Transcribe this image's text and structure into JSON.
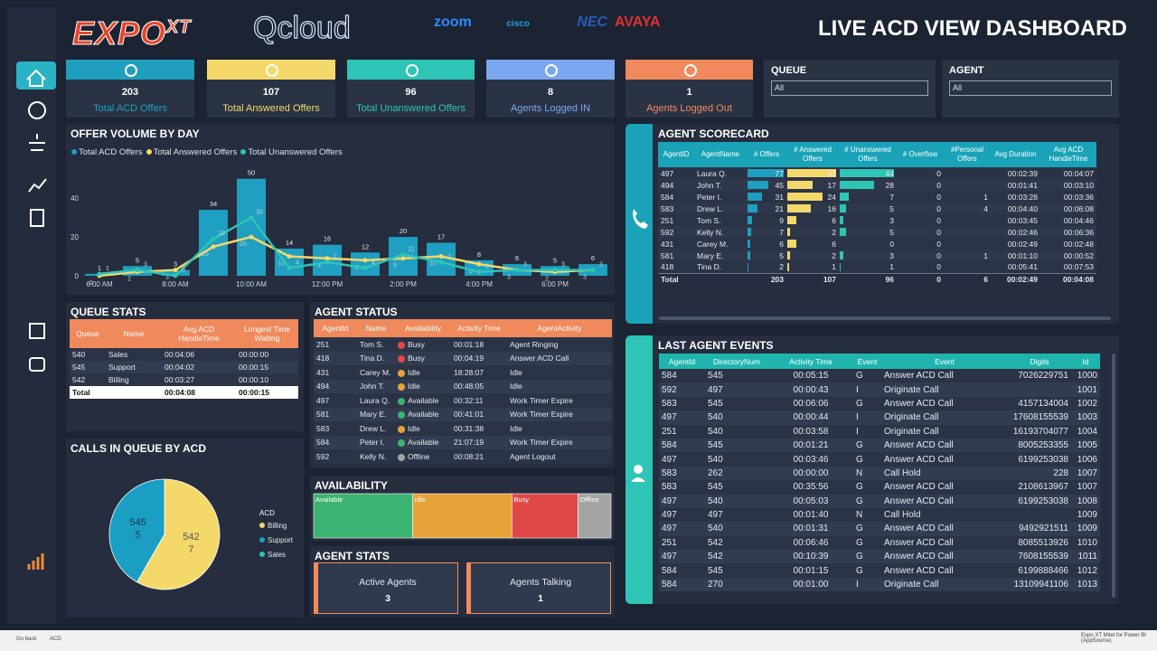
{
  "header": {
    "logo": "EXPO",
    "logo_sup": "XT",
    "brand": "Qcloud",
    "partners": [
      "zoom",
      "cisco",
      "NEC",
      "AVAYA"
    ],
    "title": "LIVE ACD VIEW DASHBOARD"
  },
  "kpis": [
    {
      "value": 203,
      "label": "Total ACD Offers",
      "color": "#1f9fbd"
    },
    {
      "value": 107,
      "label": "Total Answered Offers",
      "color": "#f5d86a"
    },
    {
      "value": 96,
      "label": "Total Unanswered Offers",
      "color": "#2ec4b6"
    },
    {
      "value": 8,
      "label": "Agents Logged IN",
      "color": "#7ba7f0"
    },
    {
      "value": 1,
      "label": "Agents Logged Out",
      "color": "#f08a5d"
    }
  ],
  "filters": [
    {
      "label": "QUEUE",
      "value": "All"
    },
    {
      "label": "AGENT",
      "value": "All"
    }
  ],
  "chart_data": [
    {
      "type": "bar",
      "title": "OFFER VOLUME BY DAY",
      "categories": [
        "6:00 AM",
        null,
        "8:00 AM",
        null,
        "10:00 AM",
        null,
        "12:00 PM",
        null,
        "2:00 PM",
        null,
        "4:00 PM",
        null,
        "6:00 PM",
        null
      ],
      "series": [
        {
          "name": "Total ACD Offers",
          "color": "#1f9fc1",
          "mark": "bar",
          "values": [
            1,
            5,
            3,
            34,
            50,
            14,
            16,
            12,
            20,
            17,
            8,
            6,
            5,
            6
          ]
        },
        {
          "name": "Total Answered Offers",
          "color": "#f5d86a",
          "mark": "line",
          "values": [
            0,
            2,
            3,
            15,
            20,
            10,
            9,
            8,
            9,
            10,
            6,
            3,
            2,
            3
          ]
        },
        {
          "name": "Total Unanswered Offers",
          "color": "#2ec4b6",
          "mark": "line",
          "values": [
            1,
            3,
            0,
            19,
            30,
            4,
            7,
            4,
            11,
            7,
            2,
            3,
            3,
            3
          ]
        }
      ],
      "ylim": [
        0,
        55
      ],
      "yticks": [
        0,
        20,
        40
      ],
      "grid": false,
      "legend": "top"
    },
    {
      "type": "pie",
      "title": "CALLS IN QUEUE BY ACD",
      "legend_title": "ACD",
      "categories": [
        "Billing",
        "Support",
        "Sales"
      ],
      "codes": [
        "542",
        "545",
        null
      ],
      "values": [
        7,
        5,
        0
      ],
      "colors": [
        "#f5d86a",
        "#1a9ec4",
        "#2ec4b6"
      ]
    },
    {
      "type": "stacked_bar",
      "title": "AVAILABILITY",
      "categories": [
        "Available",
        "Idle",
        "Busy",
        "Offline"
      ],
      "values": [
        3,
        3,
        2,
        1
      ],
      "colors": [
        "#3cb371",
        "#e8a23a",
        "#e04848",
        "#a3a3a3"
      ]
    }
  ],
  "queue_stats": {
    "title": "QUEUE STATS",
    "columns": [
      "Queue",
      "Name",
      "Avg ACD HandleTime",
      "Longest Time Waiting"
    ],
    "rows": [
      [
        "540",
        "Sales",
        "00:04:06",
        "00:00:00"
      ],
      [
        "545",
        "Support",
        "00:04:02",
        "00:00:15"
      ],
      [
        "542",
        "Billing",
        "00:03:27",
        "00:00:10"
      ]
    ],
    "total": [
      "Total",
      null,
      "00:04:08",
      "00:00:15"
    ]
  },
  "agent_status": {
    "title": "AGENT STATUS",
    "columns": [
      "AgentId",
      "Name",
      "Availability",
      "Activity Time",
      "AgentActivity"
    ],
    "rows": [
      [
        "251",
        "Tom S.",
        "Busy",
        "00:01:18",
        "Agent Ringing"
      ],
      [
        "418",
        "Tina D.",
        "Busy",
        "00:04:19",
        "Answer ACD Call"
      ],
      [
        "431",
        "Carey M.",
        "Idle",
        "18:28:07",
        "Idle"
      ],
      [
        "494",
        "John T.",
        "Idle",
        "00:48:05",
        "Idle"
      ],
      [
        "497",
        "Laura Q.",
        "Available",
        "00:32:11",
        "Work Timer Expire"
      ],
      [
        "581",
        "Mary E.",
        "Available",
        "00:41:01",
        "Work Timer Expire"
      ],
      [
        "583",
        "Drew L.",
        "Idle",
        "00:31:38",
        "Idle"
      ],
      [
        "584",
        "Peter I.",
        "Available",
        "21:07:19",
        "Work Timer Expire"
      ],
      [
        "592",
        "Kelly N.",
        "Offline",
        "00:08:21",
        "Agent Logout"
      ]
    ]
  },
  "agent_stats": {
    "title": "AGENT STATS",
    "cards": [
      {
        "label": "Active Agents",
        "value": 3
      },
      {
        "label": "Agents Talking",
        "value": 1
      }
    ]
  },
  "scorecard": {
    "title": "AGENT SCORECARD",
    "columns": [
      "AgentID",
      "AgentName",
      "# Offers",
      "# Answered Offers",
      "# Unanswered Offers",
      "# Overflow",
      "#Personal Offers",
      "Avg Duration",
      "Avg ACD HandleTime"
    ],
    "rows": [
      [
        "497",
        "Laura Q.",
        77,
        33,
        44,
        0,
        null,
        "00:02:39",
        "00:04:07"
      ],
      [
        "494",
        "John T.",
        45,
        17,
        28,
        0,
        null,
        "00:01:41",
        "00:03:10"
      ],
      [
        "584",
        "Peter I.",
        31,
        24,
        7,
        0,
        1,
        "00:03:28",
        "00:03:36"
      ],
      [
        "583",
        "Drew L.",
        21,
        16,
        5,
        0,
        4,
        "00:04:40",
        "00:06:08"
      ],
      [
        "251",
        "Tom S.",
        9,
        6,
        3,
        0,
        null,
        "00:03:45",
        "00:04:46"
      ],
      [
        "592",
        "Kelly N.",
        7,
        2,
        5,
        0,
        null,
        "00:02:46",
        "00:06:36"
      ],
      [
        "431",
        "Carey M.",
        6,
        6,
        0,
        0,
        null,
        "00:02:49",
        "00:02:48"
      ],
      [
        "581",
        "Mary E.",
        5,
        2,
        3,
        0,
        1,
        "00:01:10",
        "00:00:52"
      ],
      [
        "418",
        "Tina D.",
        2,
        1,
        1,
        0,
        null,
        "00:05:41",
        "00:07:53"
      ]
    ],
    "total": [
      "Total",
      null,
      203,
      107,
      96,
      0,
      6,
      "00:02:49",
      "00:04:08"
    ]
  },
  "events": {
    "title": "LAST AGENT EVENTS",
    "columns": [
      "AgentId",
      "DirectoryNum",
      "Activity Time",
      "Event",
      "Event",
      "Digits",
      "Id"
    ],
    "rows": [
      [
        "584",
        "545",
        "00:05:15",
        "G",
        "Answer ACD Call",
        "7026229751",
        "1000"
      ],
      [
        "592",
        "497",
        "00:00:43",
        "I",
        "Originate Call",
        null,
        "1001"
      ],
      [
        "583",
        "545",
        "00:06:06",
        "G",
        "Answer ACD Call",
        "4157134004",
        "1002"
      ],
      [
        "497",
        "540",
        "00:00:44",
        "I",
        "Originate Call",
        "17608155539",
        "1003"
      ],
      [
        "251",
        "540",
        "00:03:58",
        "I",
        "Originate Call",
        "16193704077",
        "1004"
      ],
      [
        "584",
        "545",
        "00:01:21",
        "G",
        "Answer ACD Call",
        "8005253355",
        "1005"
      ],
      [
        "497",
        "540",
        "00:03:46",
        "G",
        "Answer ACD Call",
        "6199253038",
        "1006"
      ],
      [
        "583",
        "262",
        "00:00:00",
        "N",
        "Call Hold",
        "228",
        "1007"
      ],
      [
        "583",
        "545",
        "00:35:56",
        "G",
        "Answer ACD Call",
        "2108613967",
        "1007"
      ],
      [
        "497",
        "540",
        "00:05:03",
        "G",
        "Answer ACD Call",
        "6199253038",
        "1008"
      ],
      [
        "497",
        "497",
        "00:01:40",
        "N",
        "Call Hold",
        null,
        "1009"
      ],
      [
        "497",
        "540",
        "00:01:31",
        "G",
        "Answer ACD Call",
        "9492921511",
        "1009"
      ],
      [
        "251",
        "542",
        "00:06:46",
        "G",
        "Answer ACD Call",
        "8085513926",
        "1010"
      ],
      [
        "497",
        "542",
        "00:10:39",
        "G",
        "Answer ACD Call",
        "7608155539",
        "1011"
      ],
      [
        "584",
        "545",
        "00:01:15",
        "G",
        "Answer ACD Call",
        "6199888466",
        "1012"
      ],
      [
        "584",
        "270",
        "00:01:00",
        "I",
        "Originate Call",
        "13109941106",
        "1013"
      ]
    ]
  },
  "footer": {
    "back": "Go back",
    "page": "ACD",
    "source": "Expo XT Mitel for Power BI (AppSource)"
  }
}
